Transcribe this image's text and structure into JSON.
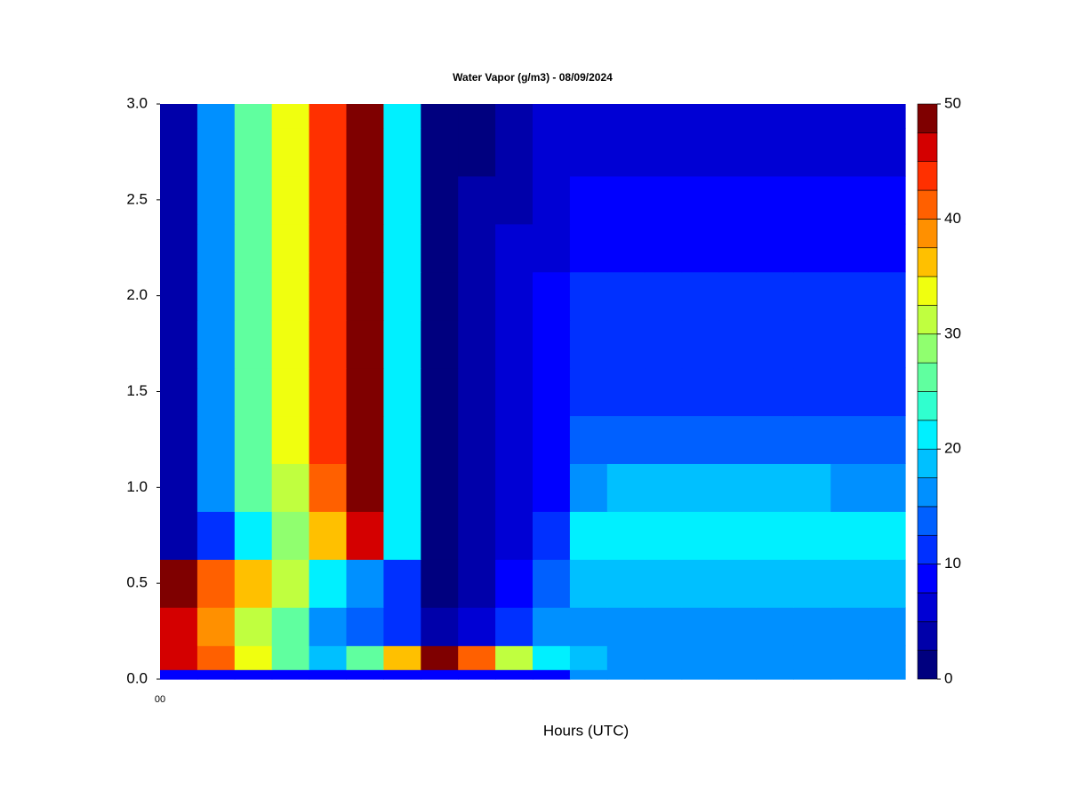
{
  "chart_data": {
    "type": "contour",
    "title": "Water Vapor (g/m3) - 08/09/2024",
    "xlabel": "Hours (UTC)",
    "categories": [
      "00",
      null,
      null,
      null,
      null,
      null,
      null,
      null,
      null,
      null,
      null,
      null,
      null,
      null,
      null,
      null,
      null,
      null,
      null,
      null
    ],
    "y": [
      0,
      0.1,
      0.25,
      0.5,
      0.75,
      1.0,
      1.25,
      1.5,
      1.75,
      2.0,
      2.25,
      2.5,
      2.75,
      3.0
    ],
    "ylim": [
      0,
      3
    ],
    "yticks": [
      {
        "value": 0,
        "label": "0.0"
      },
      0.5,
      {
        "value": 1,
        "label": "1.0"
      },
      1.5,
      {
        "value": 2,
        "label": "2.0"
      },
      2.5,
      {
        "value": 3,
        "label": "3.0"
      }
    ],
    "z": [
      [
        8,
        8,
        8,
        8,
        8,
        8,
        8,
        8,
        8,
        8,
        8,
        17,
        17,
        17,
        17,
        17,
        17,
        17,
        17,
        17
      ],
      [
        45,
        40,
        33,
        26,
        19,
        25,
        35,
        48,
        40,
        30,
        22,
        18,
        17,
        17,
        17,
        17,
        17,
        17,
        17,
        17
      ],
      [
        46,
        38,
        32,
        25,
        17,
        13,
        12,
        4,
        6,
        10,
        16,
        17,
        17,
        17,
        17,
        17,
        17,
        17,
        17,
        17
      ],
      [
        48,
        42,
        37,
        30,
        22,
        16,
        10,
        2,
        4,
        8,
        14,
        19,
        19,
        19,
        19,
        19,
        19,
        19,
        19,
        19
      ],
      [
        3,
        12,
        20,
        28,
        36,
        45,
        20,
        2,
        3,
        6,
        11,
        21,
        22,
        22,
        22,
        22,
        22,
        21,
        20,
        20
      ],
      [
        3,
        15,
        25,
        32,
        42,
        49,
        22,
        2,
        3,
        5,
        9,
        17,
        18,
        18,
        18,
        18,
        18,
        18,
        17,
        16
      ],
      [
        3,
        16,
        26,
        33,
        43,
        49,
        22,
        2,
        3,
        5,
        8,
        14,
        14,
        14,
        14,
        14,
        14,
        14,
        14,
        13
      ],
      [
        3,
        17,
        27,
        33,
        43,
        49,
        22,
        2,
        3,
        5,
        8,
        12,
        12,
        12,
        12,
        12,
        12,
        12,
        12,
        11
      ],
      [
        3,
        17,
        27,
        33,
        43,
        49,
        22,
        2,
        3,
        5,
        8,
        11,
        11,
        11,
        11,
        11,
        11,
        11,
        11,
        11
      ],
      [
        3,
        17,
        27,
        33,
        43,
        49,
        22,
        2,
        3,
        5,
        8,
        10,
        10,
        10,
        10,
        10,
        10,
        10,
        10,
        10
      ],
      [
        3,
        17,
        27,
        33,
        43,
        49,
        22,
        2,
        3,
        5,
        7,
        9,
        9,
        9,
        9,
        9,
        9,
        9,
        9,
        9
      ],
      [
        3,
        17,
        27,
        33,
        43,
        49,
        22,
        1,
        3,
        4,
        6,
        8,
        8,
        8,
        8,
        8,
        8,
        8,
        8,
        8
      ],
      [
        3,
        17,
        27,
        33,
        43,
        49,
        22,
        1,
        2,
        4,
        5,
        7,
        7,
        7,
        7,
        7,
        7,
        7,
        7,
        7
      ],
      [
        3,
        17,
        27,
        33,
        43,
        49,
        22,
        1,
        2,
        3,
        5,
        6,
        6,
        6,
        6,
        6,
        6,
        6,
        6,
        6
      ]
    ],
    "zlim": [
      0,
      50
    ],
    "zticks": [
      0,
      10,
      20,
      30,
      40,
      50
    ],
    "colors": [
      "#00007f",
      "#0000aa",
      "#0000d4",
      "#0000ff",
      "#0030ff",
      "#0060ff",
      "#0090ff",
      "#00c0ff",
      "#00f0ff",
      "#30ffcf",
      "#60ff9f",
      "#90ff6f",
      "#c0ff3f",
      "#f0ff0f",
      "#ffc000",
      "#ff9000",
      "#ff6000",
      "#ff3000",
      "#d40000",
      "#7f0000"
    ]
  }
}
